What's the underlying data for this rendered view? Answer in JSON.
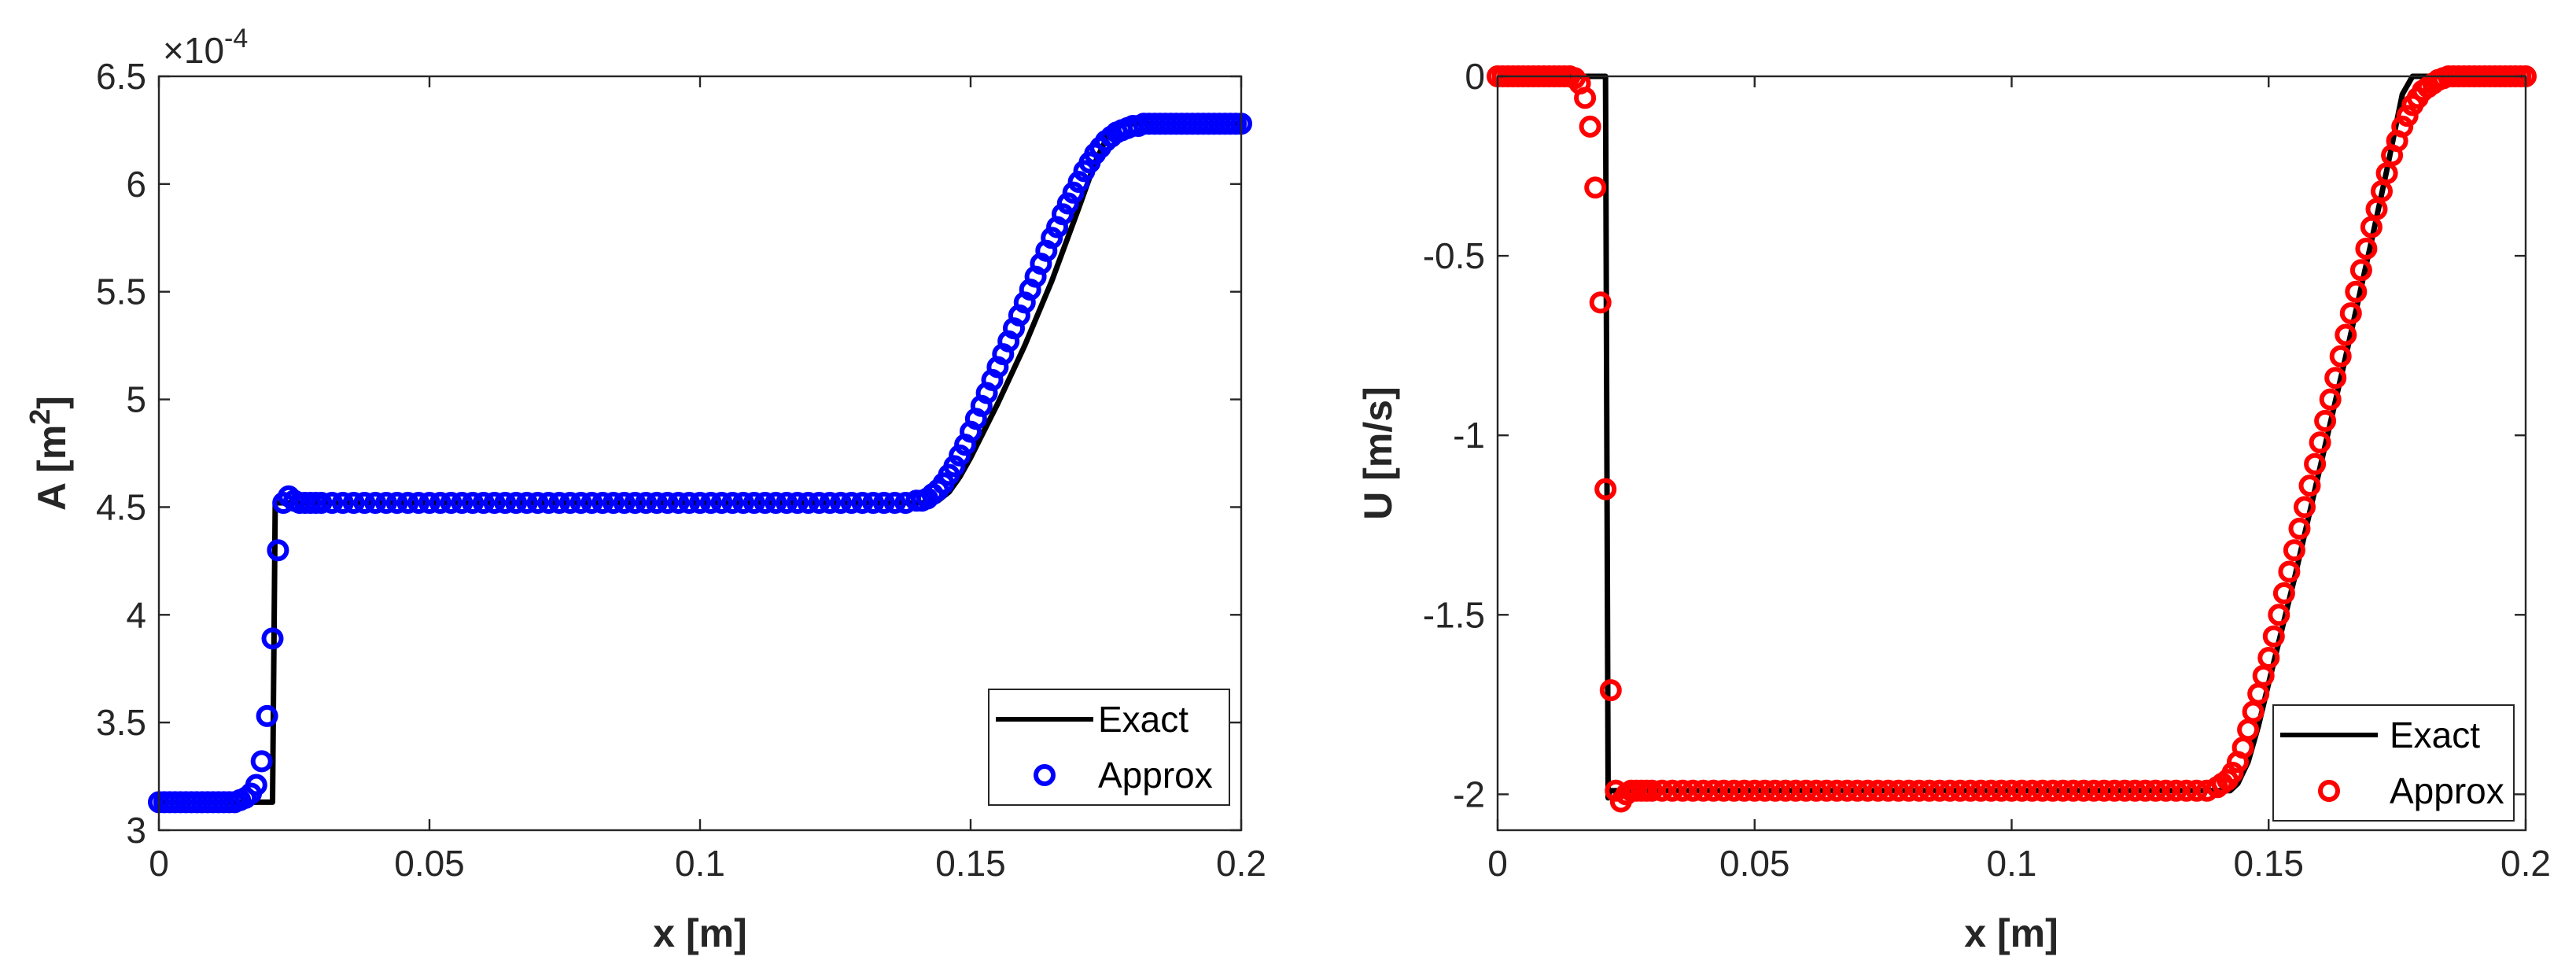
{
  "chart_data": [
    {
      "type": "line",
      "xlabel": "x [m]",
      "ylabel_main": "A [m",
      "ylabel_sup": "2",
      "ylabel_end": "]",
      "exponent_label": "×10",
      "exponent_power": "-4",
      "xlim": [
        0,
        0.2
      ],
      "ylim": [
        3,
        6.5
      ],
      "xticks": [
        0,
        0.05,
        0.1,
        0.15,
        0.2
      ],
      "xtick_labels": [
        "0",
        "0.05",
        "0.1",
        "0.15",
        "0.2"
      ],
      "yticks": [
        3,
        3.5,
        4,
        4.5,
        5,
        5.5,
        6,
        6.5
      ],
      "ytick_labels": [
        "3",
        "3.5",
        "4",
        "4.5",
        "5",
        "5.5",
        "6",
        "6.5"
      ],
      "grid": false,
      "legend_position": "bottom-right",
      "series": [
        {
          "name": "Exact",
          "kind": "line",
          "color": "#000000",
          "x": [
            0,
            0.021,
            0.0215,
            0.0218,
            0.1425,
            0.144,
            0.146,
            0.148,
            0.15,
            0.155,
            0.16,
            0.165,
            0.17,
            0.173,
            0.176,
            0.178,
            0.2
          ],
          "y": [
            3.13,
            3.13,
            4.52,
            4.52,
            4.52,
            4.53,
            4.57,
            4.64,
            4.73,
            4.98,
            5.25,
            5.55,
            5.89,
            6.1,
            6.26,
            6.28,
            6.28
          ]
        },
        {
          "name": "Approx",
          "kind": "markers",
          "color": "#0000ff",
          "x": [
            0,
            0.001,
            0.002,
            0.003,
            0.004,
            0.005,
            0.006,
            0.007,
            0.008,
            0.009,
            0.01,
            0.011,
            0.012,
            0.013,
            0.014,
            0.015,
            0.016,
            0.017,
            0.018,
            0.019,
            0.02,
            0.021,
            0.022,
            0.023,
            0.024,
            0.025,
            0.026,
            0.027,
            0.028,
            0.029,
            0.03,
            0.032,
            0.034,
            0.036,
            0.038,
            0.04,
            0.042,
            0.044,
            0.046,
            0.048,
            0.05,
            0.052,
            0.054,
            0.056,
            0.058,
            0.06,
            0.062,
            0.064,
            0.066,
            0.068,
            0.07,
            0.072,
            0.074,
            0.076,
            0.078,
            0.08,
            0.082,
            0.084,
            0.086,
            0.088,
            0.09,
            0.092,
            0.094,
            0.096,
            0.098,
            0.1,
            0.102,
            0.104,
            0.106,
            0.108,
            0.11,
            0.112,
            0.114,
            0.116,
            0.118,
            0.12,
            0.122,
            0.124,
            0.126,
            0.128,
            0.13,
            0.132,
            0.134,
            0.136,
            0.138,
            0.14,
            0.141,
            0.142,
            0.143,
            0.144,
            0.145,
            0.146,
            0.147,
            0.148,
            0.149,
            0.15,
            0.151,
            0.152,
            0.153,
            0.154,
            0.155,
            0.156,
            0.157,
            0.158,
            0.159,
            0.16,
            0.161,
            0.162,
            0.163,
            0.164,
            0.165,
            0.166,
            0.167,
            0.168,
            0.169,
            0.17,
            0.171,
            0.172,
            0.173,
            0.174,
            0.175,
            0.176,
            0.177,
            0.178,
            0.179,
            0.18,
            0.181,
            0.182,
            0.183,
            0.184,
            0.185,
            0.186,
            0.187,
            0.188,
            0.189,
            0.19,
            0.191,
            0.192,
            0.193,
            0.194,
            0.195,
            0.196,
            0.197,
            0.198,
            0.199,
            0.2
          ],
          "y": [
            3.13,
            3.13,
            3.13,
            3.13,
            3.13,
            3.13,
            3.13,
            3.13,
            3.13,
            3.13,
            3.13,
            3.13,
            3.13,
            3.13,
            3.13,
            3.14,
            3.15,
            3.17,
            3.21,
            3.32,
            3.53,
            3.89,
            4.3,
            4.52,
            4.55,
            4.53,
            4.52,
            4.52,
            4.52,
            4.52,
            4.52,
            4.52,
            4.52,
            4.52,
            4.52,
            4.52,
            4.52,
            4.52,
            4.52,
            4.52,
            4.52,
            4.52,
            4.52,
            4.52,
            4.52,
            4.52,
            4.52,
            4.52,
            4.52,
            4.52,
            4.52,
            4.52,
            4.52,
            4.52,
            4.52,
            4.52,
            4.52,
            4.52,
            4.52,
            4.52,
            4.52,
            4.52,
            4.52,
            4.52,
            4.52,
            4.52,
            4.52,
            4.52,
            4.52,
            4.52,
            4.52,
            4.52,
            4.52,
            4.52,
            4.52,
            4.52,
            4.52,
            4.52,
            4.52,
            4.52,
            4.52,
            4.52,
            4.52,
            4.52,
            4.52,
            4.53,
            4.53,
            4.54,
            4.56,
            4.58,
            4.61,
            4.65,
            4.69,
            4.74,
            4.79,
            4.85,
            4.91,
            4.97,
            5.03,
            5.09,
            5.15,
            5.21,
            5.27,
            5.33,
            5.39,
            5.45,
            5.51,
            5.57,
            5.63,
            5.69,
            5.75,
            5.8,
            5.86,
            5.91,
            5.96,
            6.01,
            6.06,
            6.1,
            6.14,
            6.17,
            6.2,
            6.22,
            6.24,
            6.25,
            6.26,
            6.27,
            6.27,
            6.28,
            6.28,
            6.28,
            6.28,
            6.28,
            6.28,
            6.28,
            6.28,
            6.28,
            6.28,
            6.28,
            6.28,
            6.28,
            6.28,
            6.28,
            6.28,
            6.28,
            6.28,
            6.28
          ]
        }
      ]
    },
    {
      "type": "line",
      "xlabel": "x [m]",
      "ylabel_main": "U [m/s]",
      "ylabel_sup": "",
      "ylabel_end": "",
      "exponent_label": "",
      "exponent_power": "",
      "xlim": [
        0,
        0.2
      ],
      "ylim": [
        -2.1,
        0
      ],
      "xticks": [
        0,
        0.05,
        0.1,
        0.15,
        0.2
      ],
      "xtick_labels": [
        "0",
        "0.05",
        "0.1",
        "0.15",
        "0.2"
      ],
      "yticks": [
        0,
        -0.5,
        -1,
        -1.5,
        -2
      ],
      "ytick_labels": [
        "0",
        "-0.5",
        "-1",
        "-1.5",
        "-2"
      ],
      "grid": false,
      "legend_position": "bottom-right",
      "series": [
        {
          "name": "Exact",
          "kind": "line",
          "color": "#000000",
          "x": [
            0,
            0.021,
            0.0215,
            0.0218,
            0.1425,
            0.144,
            0.146,
            0.148,
            0.15,
            0.155,
            0.16,
            0.165,
            0.17,
            0.173,
            0.176,
            0.178,
            0.2
          ],
          "y": [
            0,
            0,
            -2.01,
            -1.99,
            -1.99,
            -1.97,
            -1.91,
            -1.81,
            -1.69,
            -1.4,
            -1.09,
            -0.78,
            -0.46,
            -0.26,
            -0.05,
            0,
            0
          ]
        },
        {
          "name": "Approx",
          "kind": "markers",
          "color": "#ff0000",
          "x": [
            0,
            0.001,
            0.002,
            0.003,
            0.004,
            0.005,
            0.006,
            0.007,
            0.008,
            0.009,
            0.01,
            0.011,
            0.012,
            0.013,
            0.014,
            0.015,
            0.016,
            0.017,
            0.018,
            0.019,
            0.02,
            0.021,
            0.022,
            0.023,
            0.024,
            0.025,
            0.026,
            0.027,
            0.028,
            0.029,
            0.03,
            0.032,
            0.034,
            0.036,
            0.038,
            0.04,
            0.042,
            0.044,
            0.046,
            0.048,
            0.05,
            0.052,
            0.054,
            0.056,
            0.058,
            0.06,
            0.062,
            0.064,
            0.066,
            0.068,
            0.07,
            0.072,
            0.074,
            0.076,
            0.078,
            0.08,
            0.082,
            0.084,
            0.086,
            0.088,
            0.09,
            0.092,
            0.094,
            0.096,
            0.098,
            0.1,
            0.102,
            0.104,
            0.106,
            0.108,
            0.11,
            0.112,
            0.114,
            0.116,
            0.118,
            0.12,
            0.122,
            0.124,
            0.126,
            0.128,
            0.13,
            0.132,
            0.134,
            0.136,
            0.138,
            0.14,
            0.141,
            0.142,
            0.143,
            0.144,
            0.145,
            0.146,
            0.147,
            0.148,
            0.149,
            0.15,
            0.151,
            0.152,
            0.153,
            0.154,
            0.155,
            0.156,
            0.157,
            0.158,
            0.159,
            0.16,
            0.161,
            0.162,
            0.163,
            0.164,
            0.165,
            0.166,
            0.167,
            0.168,
            0.169,
            0.17,
            0.171,
            0.172,
            0.173,
            0.174,
            0.175,
            0.176,
            0.177,
            0.178,
            0.179,
            0.18,
            0.181,
            0.182,
            0.183,
            0.184,
            0.185,
            0.186,
            0.187,
            0.188,
            0.189,
            0.19,
            0.191,
            0.192,
            0.193,
            0.194,
            0.195,
            0.196,
            0.197,
            0.198,
            0.199,
            0.2
          ],
          "y": [
            0,
            0,
            0,
            0,
            0,
            0,
            0,
            0,
            0,
            0,
            0,
            0,
            0,
            0,
            0,
            -0.005,
            -0.02,
            -0.06,
            -0.14,
            -0.31,
            -0.63,
            -1.15,
            -1.71,
            -1.99,
            -2.02,
            -2.0,
            -1.99,
            -1.99,
            -1.99,
            -1.99,
            -1.99,
            -1.99,
            -1.99,
            -1.99,
            -1.99,
            -1.99,
            -1.99,
            -1.99,
            -1.99,
            -1.99,
            -1.99,
            -1.99,
            -1.99,
            -1.99,
            -1.99,
            -1.99,
            -1.99,
            -1.99,
            -1.99,
            -1.99,
            -1.99,
            -1.99,
            -1.99,
            -1.99,
            -1.99,
            -1.99,
            -1.99,
            -1.99,
            -1.99,
            -1.99,
            -1.99,
            -1.99,
            -1.99,
            -1.99,
            -1.99,
            -1.99,
            -1.99,
            -1.99,
            -1.99,
            -1.99,
            -1.99,
            -1.99,
            -1.99,
            -1.99,
            -1.99,
            -1.99,
            -1.99,
            -1.99,
            -1.99,
            -1.99,
            -1.99,
            -1.99,
            -1.99,
            -1.99,
            -1.99,
            -1.98,
            -1.97,
            -1.96,
            -1.94,
            -1.91,
            -1.87,
            -1.82,
            -1.77,
            -1.72,
            -1.67,
            -1.62,
            -1.56,
            -1.5,
            -1.44,
            -1.38,
            -1.32,
            -1.26,
            -1.2,
            -1.14,
            -1.08,
            -1.02,
            -0.96,
            -0.9,
            -0.84,
            -0.78,
            -0.72,
            -0.66,
            -0.6,
            -0.54,
            -0.48,
            -0.42,
            -0.37,
            -0.32,
            -0.27,
            -0.22,
            -0.18,
            -0.14,
            -0.11,
            -0.08,
            -0.06,
            -0.04,
            -0.03,
            -0.02,
            -0.01,
            -0.005,
            0,
            0,
            0,
            0,
            0,
            0,
            0,
            0,
            0,
            0,
            0,
            0,
            0,
            0,
            0,
            0
          ]
        }
      ]
    }
  ]
}
